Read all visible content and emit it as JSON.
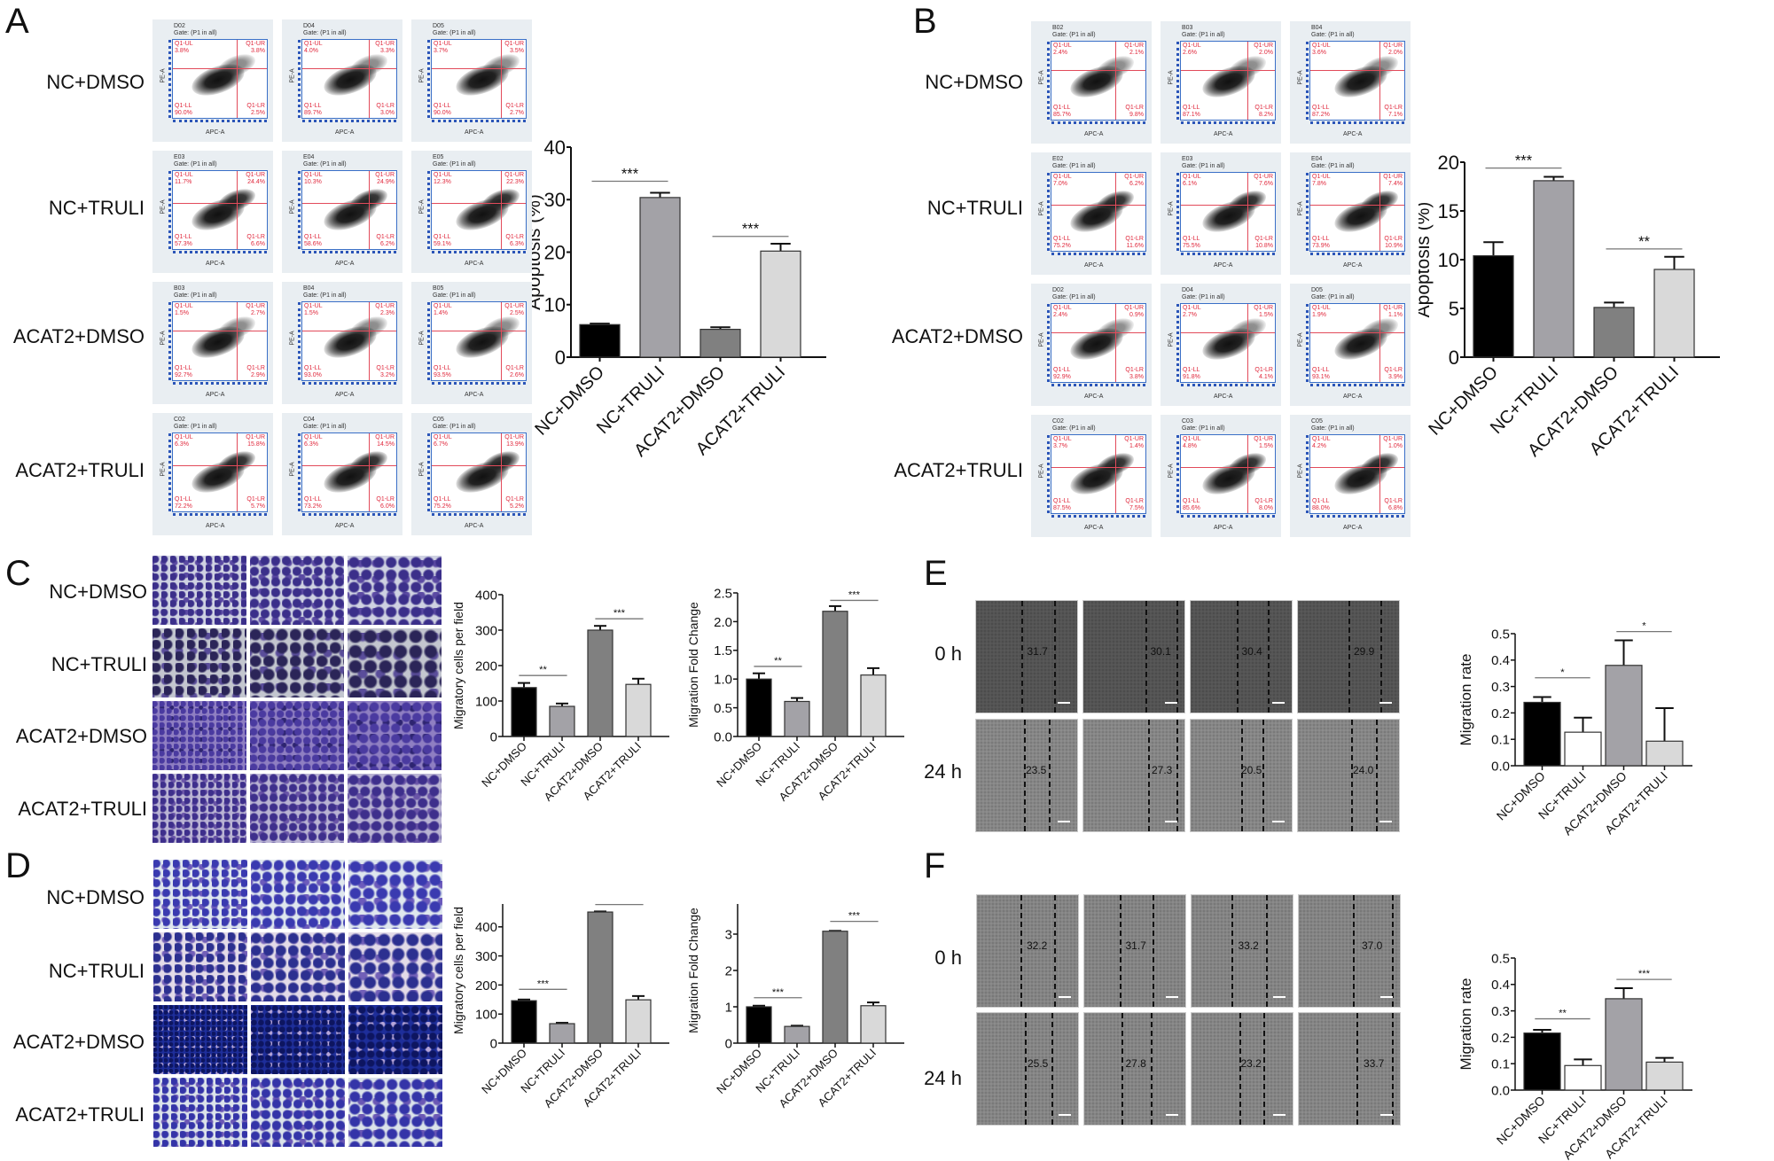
{
  "panels": {
    "A": {
      "letter": "A",
      "row_labels": [
        "NC+DMSO",
        "NC+TRULI",
        "ACAT2+DMSO",
        "ACAT2+TRULI"
      ]
    },
    "B": {
      "letter": "B",
      "row_labels": [
        "NC+DMSO",
        "NC+TRULI",
        "ACAT2+DMSO",
        "ACAT2+TRULI"
      ]
    },
    "C": {
      "letter": "C",
      "row_labels": [
        "NC+DMSO",
        "NC+TRULI",
        "ACAT2+DMSO",
        "ACAT2+TRULI"
      ]
    },
    "D": {
      "letter": "D",
      "row_labels": [
        "NC+DMSO",
        "NC+TRULI",
        "ACAT2+DMSO",
        "ACAT2+TRULI"
      ]
    },
    "E": {
      "letter": "E",
      "row_labels": [
        "0 h",
        "24 h"
      ],
      "gap_values": [
        [
          "31.7",
          "30.1",
          "30.4",
          "29.9"
        ],
        [
          "23.5",
          "27.3",
          "20.5",
          "24.0"
        ]
      ]
    },
    "F": {
      "letter": "F",
      "row_labels": [
        "0 h",
        "24 h"
      ],
      "gap_values": [
        [
          "32.2",
          "31.7",
          "33.2",
          "37.0"
        ],
        [
          "25.5",
          "27.8",
          "23.2",
          "33.7"
        ]
      ]
    }
  },
  "flow": {
    "gate_text": "Gate: (P1 in all)",
    "x_axis": "APC-A",
    "y_axis": "PE-A",
    "quadrant_labels": [
      "Q1-UL",
      "Q1-UR",
      "Q1-LL",
      "Q1-LR"
    ],
    "A": [
      [
        {
          "id": "D02",
          "ul": "3.8%",
          "ur": "3.8%",
          "ll": "90.0%",
          "lr": "2.5%"
        },
        {
          "id": "D04",
          "ul": "4.0%",
          "ur": "3.3%",
          "ll": "89.7%",
          "lr": "3.0%"
        },
        {
          "id": "D05",
          "ul": "3.7%",
          "ur": "3.5%",
          "ll": "90.0%",
          "lr": "2.7%"
        }
      ],
      [
        {
          "id": "E03",
          "ul": "11.7%",
          "ur": "24.4%",
          "ll": "57.3%",
          "lr": "6.6%"
        },
        {
          "id": "E04",
          "ul": "10.3%",
          "ur": "24.9%",
          "ll": "58.6%",
          "lr": "6.2%"
        },
        {
          "id": "E05",
          "ul": "12.3%",
          "ur": "22.3%",
          "ll": "59.1%",
          "lr": "6.3%"
        }
      ],
      [
        {
          "id": "B03",
          "ul": "1.5%",
          "ur": "2.7%",
          "ll": "92.7%",
          "lr": "2.9%"
        },
        {
          "id": "B04",
          "ul": "1.5%",
          "ur": "2.3%",
          "ll": "93.0%",
          "lr": "3.2%"
        },
        {
          "id": "B05",
          "ul": "1.4%",
          "ur": "2.5%",
          "ll": "93.5%",
          "lr": "2.6%"
        }
      ],
      [
        {
          "id": "C02",
          "ul": "6.3%",
          "ur": "15.8%",
          "ll": "72.2%",
          "lr": "5.7%"
        },
        {
          "id": "C04",
          "ul": "6.3%",
          "ur": "14.5%",
          "ll": "73.2%",
          "lr": "6.0%"
        },
        {
          "id": "C05",
          "ul": "6.7%",
          "ur": "13.9%",
          "ll": "75.2%",
          "lr": "5.2%"
        }
      ]
    ],
    "B": [
      [
        {
          "id": "B02",
          "ul": "2.4%",
          "ur": "2.1%",
          "ll": "85.7%",
          "lr": "9.8%"
        },
        {
          "id": "B03",
          "ul": "2.6%",
          "ur": "2.0%",
          "ll": "87.1%",
          "lr": "8.2%"
        },
        {
          "id": "B04",
          "ul": "3.6%",
          "ur": "2.0%",
          "ll": "87.2%",
          "lr": "7.1%"
        }
      ],
      [
        {
          "id": "E02",
          "ul": "7.0%",
          "ur": "6.2%",
          "ll": "75.2%",
          "lr": "11.6%"
        },
        {
          "id": "E03",
          "ul": "6.1%",
          "ur": "7.6%",
          "ll": "75.5%",
          "lr": "10.8%"
        },
        {
          "id": "E04",
          "ul": "7.8%",
          "ur": "7.4%",
          "ll": "73.9%",
          "lr": "10.9%"
        }
      ],
      [
        {
          "id": "D02",
          "ul": "2.4%",
          "ur": "0.9%",
          "ll": "92.9%",
          "lr": "3.8%"
        },
        {
          "id": "D04",
          "ul": "2.7%",
          "ur": "1.5%",
          "ll": "91.8%",
          "lr": "4.1%"
        },
        {
          "id": "D05",
          "ul": "1.9%",
          "ur": "1.1%",
          "ll": "93.1%",
          "lr": "3.9%"
        }
      ],
      [
        {
          "id": "C02",
          "ul": "3.7%",
          "ur": "1.4%",
          "ll": "87.5%",
          "lr": "7.5%"
        },
        {
          "id": "C03",
          "ul": "4.8%",
          "ur": "1.5%",
          "ll": "85.6%",
          "lr": "8.0%"
        },
        {
          "id": "C05",
          "ul": "4.2%",
          "ur": "1.0%",
          "ll": "88.0%",
          "lr": "6.8%"
        }
      ]
    ]
  },
  "chart_data": [
    {
      "id": "A",
      "type": "bar",
      "title": "",
      "xlabel": "",
      "ylabel": "Apoptosis (%)",
      "ylim": [
        0,
        40
      ],
      "yticks": [
        "0",
        "10",
        "20",
        "30",
        "40"
      ],
      "categories": [
        "NC+DMSO",
        "NC+TRULI",
        "ACAT2+DMSO",
        "ACAT2+TRULI"
      ],
      "values": [
        6.2,
        30.4,
        5.3,
        20.2
      ],
      "errors": [
        0.2,
        0.9,
        0.4,
        1.4
      ],
      "colors": [
        "#000000",
        "#a3a2a7",
        "#808080",
        "#d9d9d9"
      ],
      "annotations": [
        {
          "from": 0,
          "to": 1,
          "label": "***",
          "y": 33.5
        },
        {
          "from": 2,
          "to": 3,
          "label": "***",
          "y": 23
        }
      ],
      "grid": false
    },
    {
      "id": "B",
      "type": "bar",
      "title": "",
      "xlabel": "",
      "ylabel": "Apoptosis (%)",
      "ylim": [
        0,
        20
      ],
      "yticks": [
        "0",
        "5",
        "10",
        "15",
        "20"
      ],
      "categories": [
        "NC+DMSO",
        "NC+TRULI",
        "ACAT2+DMSO",
        "ACAT2+TRULI"
      ],
      "values": [
        10.4,
        18.1,
        5.1,
        9.0
      ],
      "errors": [
        1.4,
        0.4,
        0.5,
        1.3
      ],
      "colors": [
        "#000000",
        "#a3a2a7",
        "#808080",
        "#d9d9d9"
      ],
      "annotations": [
        {
          "from": 0,
          "to": 1,
          "label": "***",
          "y": 19.4
        },
        {
          "from": 2,
          "to": 3,
          "label": "**",
          "y": 11.1
        }
      ],
      "grid": false
    },
    {
      "id": "C1",
      "type": "bar",
      "title": "",
      "xlabel": "",
      "ylabel": "Migratory cells per field",
      "ylim": [
        0,
        400
      ],
      "yticks": [
        "0",
        "100",
        "200",
        "300",
        "400"
      ],
      "categories": [
        "NC+DMSO",
        "NC+TRULI",
        "ACAT2+DMSO",
        "ACAT2+TRULI"
      ],
      "values": [
        138,
        85,
        300,
        147
      ],
      "errors": [
        13,
        8,
        12,
        16
      ],
      "colors": [
        "#000000",
        "#a3a2a7",
        "#808080",
        "#d9d9d9"
      ],
      "annotations": [
        {
          "from": 0,
          "to": 1,
          "label": "**",
          "y": 172
        },
        {
          "from": 2,
          "to": 3,
          "label": "***",
          "y": 332
        }
      ],
      "grid": false
    },
    {
      "id": "C2",
      "type": "bar",
      "title": "",
      "xlabel": "",
      "ylabel": "Migration Fold Change",
      "ylim": [
        0,
        2.5
      ],
      "yticks": [
        "0.0",
        "0.5",
        "1.0",
        "1.5",
        "2.0",
        "2.5"
      ],
      "categories": [
        "NC+DMSO",
        "NC+TRULI",
        "ACAT2+DMSO",
        "ACAT2+TRULI"
      ],
      "values": [
        1.0,
        0.61,
        2.18,
        1.07
      ],
      "errors": [
        0.1,
        0.06,
        0.09,
        0.12
      ],
      "colors": [
        "#000000",
        "#a3a2a7",
        "#808080",
        "#d9d9d9"
      ],
      "annotations": [
        {
          "from": 0,
          "to": 1,
          "label": "**",
          "y": 1.22
        },
        {
          "from": 2,
          "to": 3,
          "label": "***",
          "y": 2.37
        }
      ],
      "grid": false
    },
    {
      "id": "D1",
      "type": "bar",
      "title": "",
      "xlabel": "",
      "ylabel": "Migratory cells per field",
      "ylim": [
        0,
        500
      ],
      "yticks": [
        "0",
        "100",
        "200",
        "300",
        "400",
        "500"
      ],
      "categories": [
        "NC+DMSO",
        "NC+TRULI",
        "ACAT2+DMSO",
        "ACAT2+TRULI"
      ],
      "values": [
        146,
        67,
        451,
        149
      ],
      "errors": [
        4,
        3,
        2,
        13
      ],
      "colors": [
        "#000000",
        "#a3a2a7",
        "#808080",
        "#d9d9d9"
      ],
      "annotations": [
        {
          "from": 0,
          "to": 1,
          "label": "***",
          "y": 185
        },
        {
          "from": 2,
          "to": 3,
          "label": "***",
          "y": 477
        }
      ],
      "grid": false
    },
    {
      "id": "D2",
      "type": "bar",
      "title": "",
      "xlabel": "",
      "ylabel": "Migration Fold Change",
      "ylim": [
        0,
        4
      ],
      "yticks": [
        "0",
        "1",
        "2",
        "3",
        "4"
      ],
      "categories": [
        "NC+DMSO",
        "NC+TRULI",
        "ACAT2+DMSO",
        "ACAT2+TRULI"
      ],
      "values": [
        1.0,
        0.46,
        3.08,
        1.03
      ],
      "errors": [
        0.03,
        0.02,
        0.01,
        0.09
      ],
      "colors": [
        "#000000",
        "#a3a2a7",
        "#808080",
        "#d9d9d9"
      ],
      "annotations": [
        {
          "from": 0,
          "to": 1,
          "label": "***",
          "y": 1.25
        },
        {
          "from": 2,
          "to": 3,
          "label": "***",
          "y": 3.35
        }
      ],
      "grid": false
    },
    {
      "id": "E",
      "type": "bar",
      "title": "",
      "xlabel": "",
      "ylabel": "Migration rate",
      "ylim": [
        0,
        0.5
      ],
      "yticks": [
        "0.0",
        "0.1",
        "0.2",
        "0.3",
        "0.4",
        "0.5"
      ],
      "categories": [
        "NC+DMSO",
        "NC+TRULI",
        "ACAT2+DMSO",
        "ACAT2+TRULI"
      ],
      "values": [
        0.24,
        0.127,
        0.38,
        0.093
      ],
      "errors": [
        0.02,
        0.055,
        0.095,
        0.125
      ],
      "colors": [
        "#000000",
        "#ffffff",
        "#a3a2a7",
        "#d9d9d9"
      ],
      "annotations": [
        {
          "from": 0,
          "to": 1,
          "label": "*",
          "y": 0.333
        },
        {
          "from": 2,
          "to": 3,
          "label": "*",
          "y": 0.508
        }
      ],
      "grid": false
    },
    {
      "id": "F",
      "type": "bar",
      "title": "",
      "xlabel": "",
      "ylabel": "Migration rate",
      "ylim": [
        0,
        0.5
      ],
      "yticks": [
        "0.0",
        "0.1",
        "0.2",
        "0.3",
        "0.4",
        "0.5"
      ],
      "categories": [
        "NC+DMSO",
        "NC+TRULI",
        "ACAT2+DMSO",
        "ACAT2+TRULI"
      ],
      "values": [
        0.216,
        0.093,
        0.346,
        0.106
      ],
      "errors": [
        0.012,
        0.023,
        0.04,
        0.016
      ],
      "colors": [
        "#000000",
        "#ffffff",
        "#a3a2a7",
        "#d9d9d9"
      ],
      "annotations": [
        {
          "from": 0,
          "to": 1,
          "label": "**",
          "y": 0.27
        },
        {
          "from": 2,
          "to": 3,
          "label": "***",
          "y": 0.419
        }
      ],
      "grid": false
    }
  ]
}
